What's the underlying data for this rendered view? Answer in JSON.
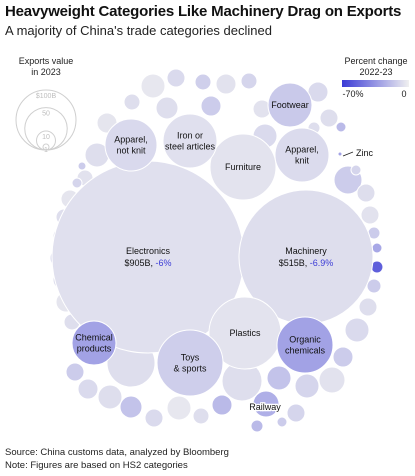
{
  "header": {
    "title": "Heavyweight Categories Like Machinery Drag on Exports",
    "subtitle": "A majority of China's trade categories declined"
  },
  "size_legend": {
    "title_line1": "Exports value",
    "title_line2": "in 2023",
    "labels": [
      "$100B",
      "50",
      "10",
      "1"
    ],
    "values": [
      100,
      50,
      10,
      1
    ]
  },
  "color_legend": {
    "title_line1": "Percent change",
    "title_line2": "2022-23",
    "min_label": "-70%",
    "max_label": "0",
    "min_color": "#3b3bd6",
    "max_color": "#f0f0f0"
  },
  "footer": {
    "source": "Source: China customs data, analyzed by Bloomberg",
    "note": "Note: Figures are based on HS2 categories"
  },
  "chart_data": {
    "type": "bubble",
    "size_metric": "Exports value in 2023",
    "color_metric": "Percent change 2022-23",
    "color_scale": [
      -70,
      0
    ],
    "labeled_categories": [
      {
        "name": "Electronics",
        "value_label": "$905B",
        "change_label": "-6%",
        "value": 905,
        "change": -6
      },
      {
        "name": "Machinery",
        "value_label": "$515B",
        "change_label": "-6.9%",
        "value": 515,
        "change": -6.9
      },
      {
        "name": "Plastics",
        "value": 60,
        "change": -5
      },
      {
        "name": "Toys & sports",
        "value": 55,
        "change": -13
      },
      {
        "name": "Organic chemicals",
        "value": 50,
        "change": -30
      },
      {
        "name": "Furniture",
        "value": 57,
        "change": -5
      },
      {
        "name": "Apparel, knit",
        "value": 42,
        "change": -8
      },
      {
        "name": "Apparel, not knit",
        "value": 38,
        "change": -9
      },
      {
        "name": "Iron or steel articles",
        "value": 40,
        "change": -6
      },
      {
        "name": "Footwear",
        "value": 30,
        "change": -15
      },
      {
        "name": "Chemical products",
        "value": 25,
        "change": -30
      },
      {
        "name": "Railway",
        "value": 14,
        "change": -25
      },
      {
        "name": "Zinc",
        "value": 0.2,
        "change": -30
      }
    ]
  }
}
